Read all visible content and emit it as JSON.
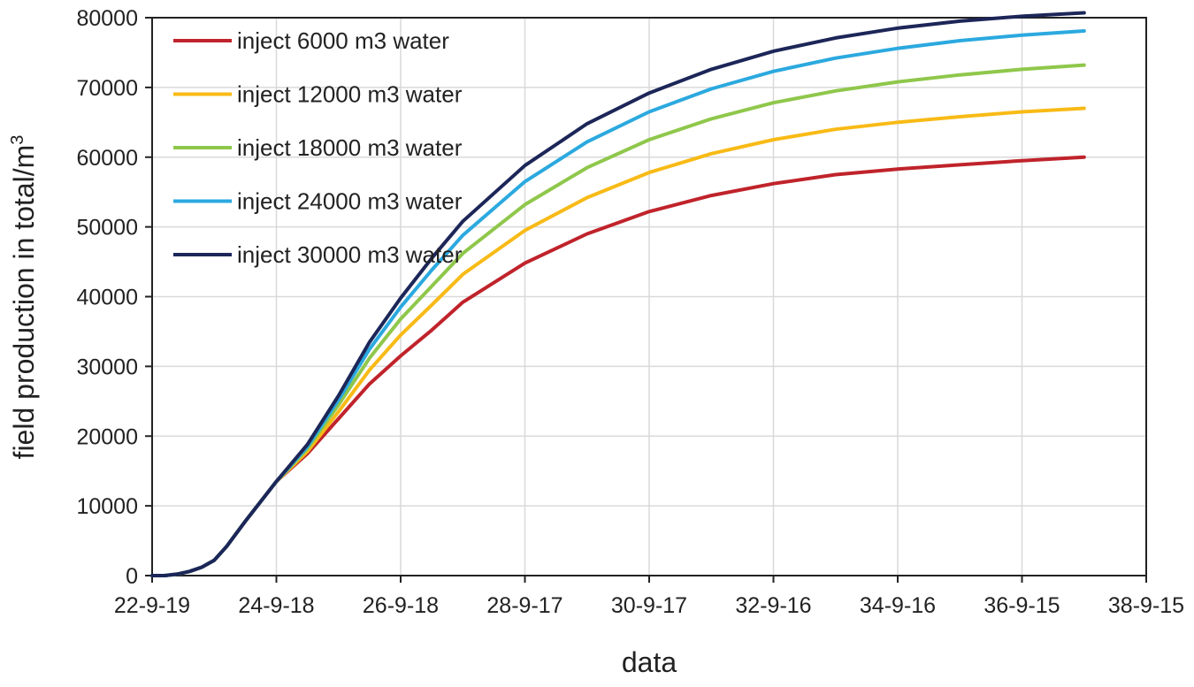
{
  "chart_data": {
    "type": "line",
    "title": "",
    "xlabel": "data",
    "ylabel_main": "field production in total/m",
    "ylabel_superscript": "3",
    "x_tick_labels": [
      "22-9-19",
      "24-9-18",
      "26-9-18",
      "28-9-17",
      "30-9-17",
      "32-9-16",
      "34-9-16",
      "36-9-15",
      "38-9-15"
    ],
    "xlim": [
      0,
      16
    ],
    "ylim": [
      0,
      80000
    ],
    "y_ticks": [
      0,
      10000,
      20000,
      30000,
      40000,
      50000,
      60000,
      70000,
      80000
    ],
    "y_tick_labels": [
      "0",
      "10000",
      "20000",
      "30000",
      "40000",
      "50000",
      "60000",
      "70000",
      "80000"
    ],
    "grid": true,
    "legend_position": "top-left",
    "series": [
      {
        "name": "inject 6000 m3 water",
        "color": "#c0232b",
        "x": [
          0,
          0.2,
          0.4,
          0.6,
          0.8,
          1.0,
          1.2,
          1.5,
          2.0,
          2.5,
          3.0,
          3.5,
          4.0,
          4.5,
          5.0,
          6.0,
          7.0,
          8.0,
          9.0,
          10.0,
          11.0,
          12.0,
          13.0,
          14.0,
          15.0
        ],
        "values": [
          0,
          0,
          200,
          600,
          1200,
          2200,
          4200,
          7800,
          13500,
          17500,
          22500,
          27500,
          31500,
          35200,
          39200,
          44800,
          49000,
          52200,
          54500,
          56200,
          57500,
          58300,
          58900,
          59500,
          60000
        ]
      },
      {
        "name": "inject 12000 m3 water",
        "color": "#f8ba16",
        "x": [
          0,
          0.2,
          0.4,
          0.6,
          0.8,
          1.0,
          1.2,
          1.5,
          2.0,
          2.5,
          3.0,
          3.5,
          4.0,
          4.5,
          5.0,
          6.0,
          7.0,
          8.0,
          9.0,
          10.0,
          11.0,
          12.0,
          13.0,
          14.0,
          15.0
        ],
        "values": [
          0,
          0,
          200,
          600,
          1200,
          2200,
          4200,
          7800,
          13500,
          17800,
          23500,
          29500,
          34500,
          38800,
          43200,
          49500,
          54200,
          57800,
          60500,
          62500,
          64000,
          65000,
          65800,
          66500,
          67000
        ]
      },
      {
        "name": "inject 18000 m3 water",
        "color": "#8fc74b",
        "x": [
          0,
          0.2,
          0.4,
          0.6,
          0.8,
          1.0,
          1.2,
          1.5,
          2.0,
          2.5,
          3.0,
          3.5,
          4.0,
          4.5,
          5.0,
          6.0,
          7.0,
          8.0,
          9.0,
          10.0,
          11.0,
          12.0,
          13.0,
          14.0,
          15.0
        ],
        "values": [
          0,
          0,
          200,
          600,
          1200,
          2200,
          4200,
          7800,
          13500,
          18200,
          24500,
          31200,
          36800,
          41500,
          46200,
          53200,
          58500,
          62500,
          65500,
          67800,
          69500,
          70800,
          71800,
          72600,
          73200
        ]
      },
      {
        "name": "inject 24000 m3 water",
        "color": "#2ba9df",
        "x": [
          0,
          0.2,
          0.4,
          0.6,
          0.8,
          1.0,
          1.2,
          1.5,
          2.0,
          2.5,
          3.0,
          3.5,
          4.0,
          4.5,
          5.0,
          6.0,
          7.0,
          8.0,
          9.0,
          10.0,
          11.0,
          12.0,
          13.0,
          14.0,
          15.0
        ],
        "values": [
          0,
          0,
          200,
          600,
          1200,
          2200,
          4200,
          7800,
          13500,
          18500,
          25200,
          32500,
          38500,
          43800,
          48800,
          56500,
          62200,
          66500,
          69800,
          72300,
          74200,
          75600,
          76700,
          77500,
          78100
        ]
      },
      {
        "name": "inject 30000 m3 water",
        "color": "#1c2658",
        "x": [
          0,
          0.2,
          0.4,
          0.6,
          0.8,
          1.0,
          1.2,
          1.5,
          2.0,
          2.5,
          3.0,
          3.5,
          4.0,
          4.5,
          5.0,
          6.0,
          7.0,
          8.0,
          9.0,
          10.0,
          11.0,
          12.0,
          13.0,
          14.0,
          15.0
        ],
        "values": [
          0,
          0,
          200,
          600,
          1200,
          2200,
          4200,
          7800,
          13500,
          18800,
          25800,
          33500,
          39800,
          45500,
          50800,
          58800,
          64800,
          69200,
          72600,
          75200,
          77100,
          78500,
          79500,
          80200,
          80700
        ]
      }
    ]
  }
}
